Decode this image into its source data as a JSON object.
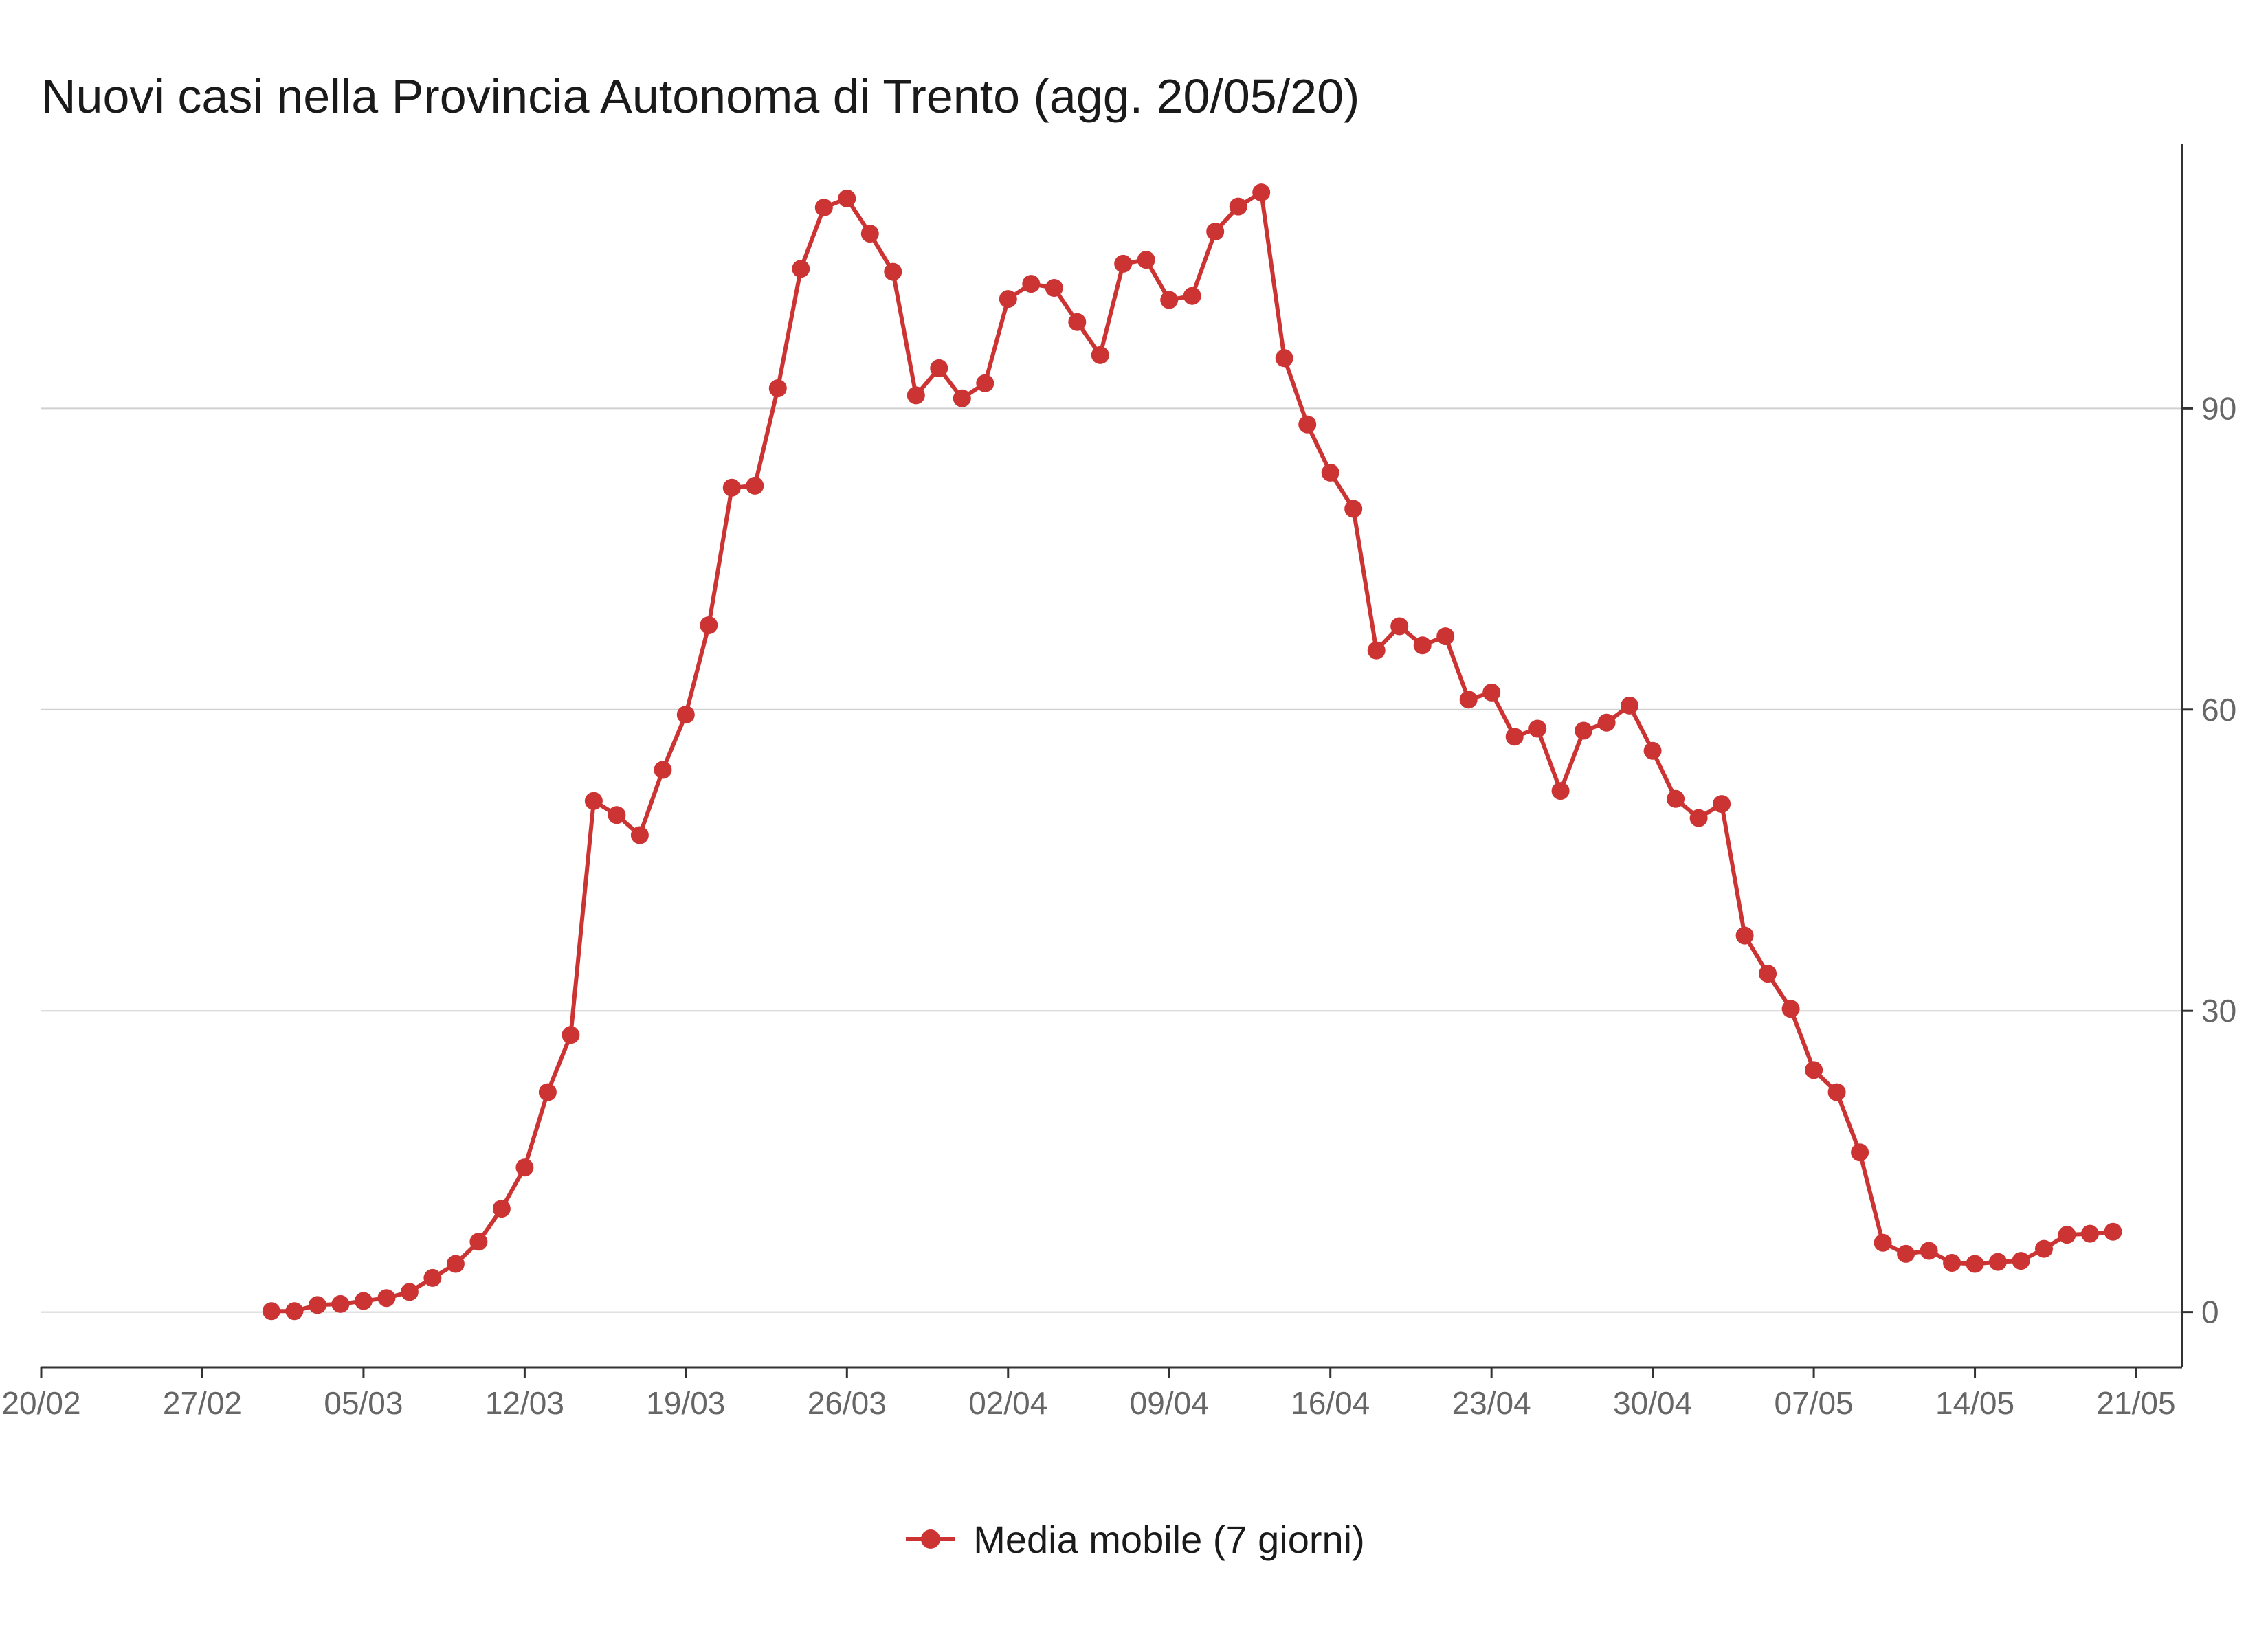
{
  "chart_data": {
    "type": "line",
    "title": "Nuovi casi nella Provincia Autonoma di Trento (agg. 20/05/20)",
    "xlabel": "",
    "ylabel": "",
    "x_start": "2020-03-01",
    "x_tick_labels": [
      "20/02",
      "27/02",
      "05/03",
      "12/03",
      "19/03",
      "26/03",
      "02/04",
      "09/04",
      "16/04",
      "23/04",
      "30/04",
      "07/05",
      "14/05",
      "21/05"
    ],
    "x_tick_dates": [
      "2020-02-20",
      "2020-02-27",
      "2020-03-05",
      "2020-03-12",
      "2020-03-19",
      "2020-03-26",
      "2020-04-02",
      "2020-04-09",
      "2020-04-16",
      "2020-04-23",
      "2020-04-30",
      "2020-05-07",
      "2020-05-14",
      "2020-05-21"
    ],
    "x_range": [
      "2020-02-20",
      "2020-05-23"
    ],
    "y_ticks": [
      0,
      30,
      60,
      90
    ],
    "ylim": [
      -5.5,
      116.3
    ],
    "y_axis_position": "right",
    "grid": "horizontal",
    "legend_position": "bottom",
    "series": [
      {
        "name": "Media mobile (7 giorni)",
        "color": "#cc3333",
        "values": [
          0.1,
          0.1,
          0.7,
          0.8,
          1.1,
          1.4,
          2.0,
          3.4,
          4.8,
          7.0,
          10.3,
          14.4,
          21.9,
          27.6,
          50.9,
          49.5,
          47.5,
          54.0,
          59.5,
          68.4,
          82.1,
          82.3,
          92.0,
          103.9,
          110.0,
          110.9,
          107.4,
          103.6,
          91.3,
          94.0,
          91.0,
          92.5,
          100.9,
          102.4,
          102.0,
          98.6,
          95.3,
          104.4,
          104.8,
          100.8,
          101.2,
          107.6,
          110.1,
          111.5,
          95.0,
          88.4,
          83.6,
          80.0,
          65.9,
          68.3,
          66.4,
          67.3,
          61.0,
          61.7,
          57.3,
          58.1,
          51.9,
          57.9,
          58.7,
          60.4,
          55.9,
          51.1,
          49.2,
          50.6,
          37.5,
          33.7,
          30.2,
          24.1,
          21.9,
          15.9,
          6.9,
          5.8,
          6.1,
          4.9,
          4.8,
          5.0,
          5.1,
          6.3,
          7.7,
          7.8,
          8.0
        ]
      }
    ]
  }
}
